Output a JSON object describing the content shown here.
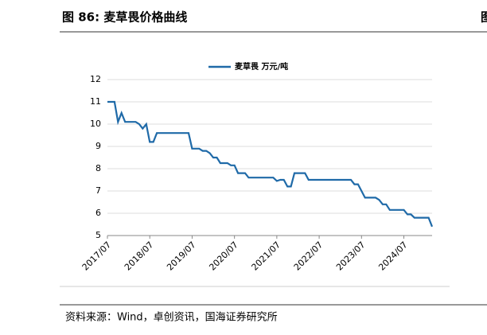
{
  "header": {
    "title": "图 86:  麦草畏价格曲线",
    "edge_fragment": "图"
  },
  "chart_data": {
    "type": "line",
    "step": true,
    "x": [
      "2017/07",
      "2017/09",
      "2017/10",
      "2017/11",
      "2017/12",
      "2018/03",
      "2018/04",
      "2018/05",
      "2018/06",
      "2018/07",
      "2018/08",
      "2018/09",
      "2019/06",
      "2019/07",
      "2019/09",
      "2019/10",
      "2019/11",
      "2019/12",
      "2020/01",
      "2020/02",
      "2020/03",
      "2020/05",
      "2020/06",
      "2020/07",
      "2020/08",
      "2020/10",
      "2020/11",
      "2021/06",
      "2021/07",
      "2021/08",
      "2021/09",
      "2021/10",
      "2021/11",
      "2021/12",
      "2022/03",
      "2022/04",
      "2023/04",
      "2023/05",
      "2023/06",
      "2023/07",
      "2023/08",
      "2023/11",
      "2023/12",
      "2024/01",
      "2024/02",
      "2024/03",
      "2024/07",
      "2024/08",
      "2024/09",
      "2024/10",
      "2025/02",
      "2025/03"
    ],
    "series": [
      {
        "name": "麦草畏  万元/吨",
        "color": "#1f6aa8",
        "values": [
          11.0,
          11.0,
          10.1,
          10.5,
          10.1,
          10.1,
          10.0,
          9.8,
          10.0,
          9.2,
          9.2,
          9.6,
          9.6,
          8.9,
          8.9,
          8.8,
          8.8,
          8.7,
          8.5,
          8.5,
          8.25,
          8.25,
          8.15,
          8.15,
          7.8,
          7.8,
          7.6,
          7.6,
          7.45,
          7.5,
          7.5,
          7.2,
          7.2,
          7.8,
          7.8,
          7.5,
          7.5,
          7.3,
          7.3,
          7.0,
          6.7,
          6.7,
          6.6,
          6.4,
          6.4,
          6.15,
          6.15,
          5.95,
          5.95,
          5.8,
          5.8,
          5.4
        ]
      }
    ],
    "xlim": [
      "2017/07",
      "2025/03"
    ],
    "xticks": [
      "2017/07",
      "2018/07",
      "2019/07",
      "2020/07",
      "2021/07",
      "2022/07",
      "2023/07",
      "2024/07"
    ],
    "ylim": [
      5,
      12
    ],
    "yticks": [
      5,
      6,
      7,
      8,
      9,
      10,
      11,
      12
    ],
    "grid": true,
    "legend": "top"
  },
  "footer": {
    "source": "资料来源：Wind，卓创资讯，国海证券研究所"
  }
}
